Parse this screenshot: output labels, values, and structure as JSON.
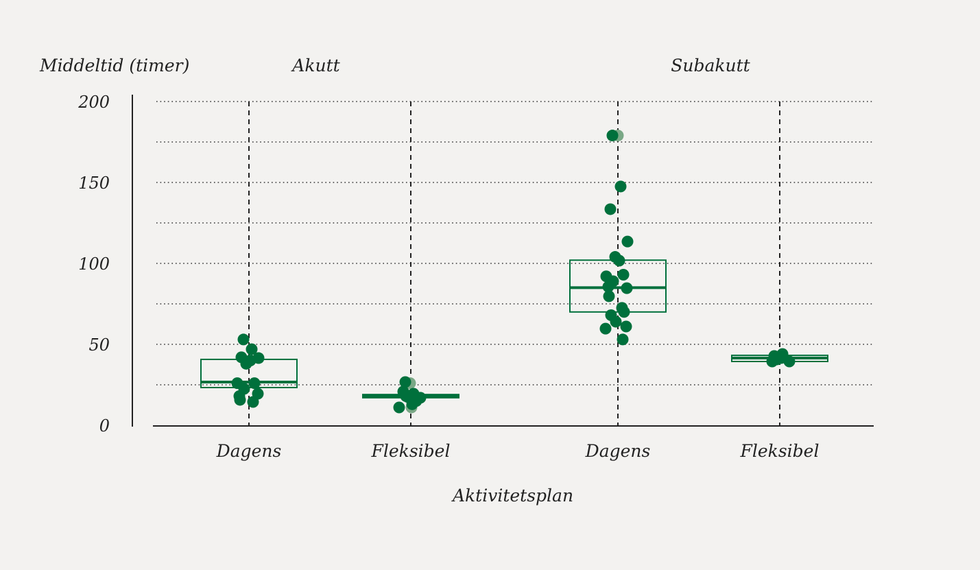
{
  "chart_data": {
    "type": "box-strip",
    "ylabel": "Middeltid (timer)",
    "xlabel": "Aktivitetsplan",
    "ylim": [
      0,
      200
    ],
    "yticks": [
      0,
      50,
      100,
      150,
      200
    ],
    "grid_step": 25,
    "grid": true,
    "colors": {
      "point": "#00703c",
      "point_light": "#7aa886",
      "box": "#00703c",
      "axis": "#222222"
    },
    "groups": [
      {
        "name": "Akutt",
        "categories": [
          {
            "label": "Dagens",
            "box": {
              "q1": 23.3,
              "median": 26.7,
              "q3": 40.7
            },
            "points": [
              53,
              47,
              42,
              41.5,
              38,
              40,
              26,
              26,
              22.5,
              18,
              19.5,
              15.7,
              14.4
            ],
            "light_points": []
          },
          {
            "label": "Fleksibel",
            "box": {
              "q1": 17,
              "median": 18,
              "q3": 19
            },
            "points": [
              26.7,
              19.5,
              20.8,
              17,
              17.4,
              13,
              11,
              15,
              18
            ],
            "light_points": [
              26,
              11
            ]
          }
        ]
      },
      {
        "name": "Subakutt",
        "categories": [
          {
            "label": "Dagens",
            "box": {
              "q1": 70,
              "median": 85,
              "q3": 102
            },
            "points": [
              179,
              147.5,
              133.5,
              113.5,
              104,
              101.7,
              92,
              93,
              89,
              85.6,
              84.7,
              79.7,
              72.5,
              68,
              70,
              64,
              61,
              59.7,
              53
            ],
            "light_points": [
              179
            ]
          },
          {
            "label": "Fleksibel",
            "box": {
              "q1": 39.4,
              "median": 41.5,
              "q3": 43.2
            },
            "points": [
              42.8,
              44,
              39.4,
              39.4,
              40.7,
              41.5
            ],
            "light_points": []
          }
        ]
      }
    ]
  }
}
